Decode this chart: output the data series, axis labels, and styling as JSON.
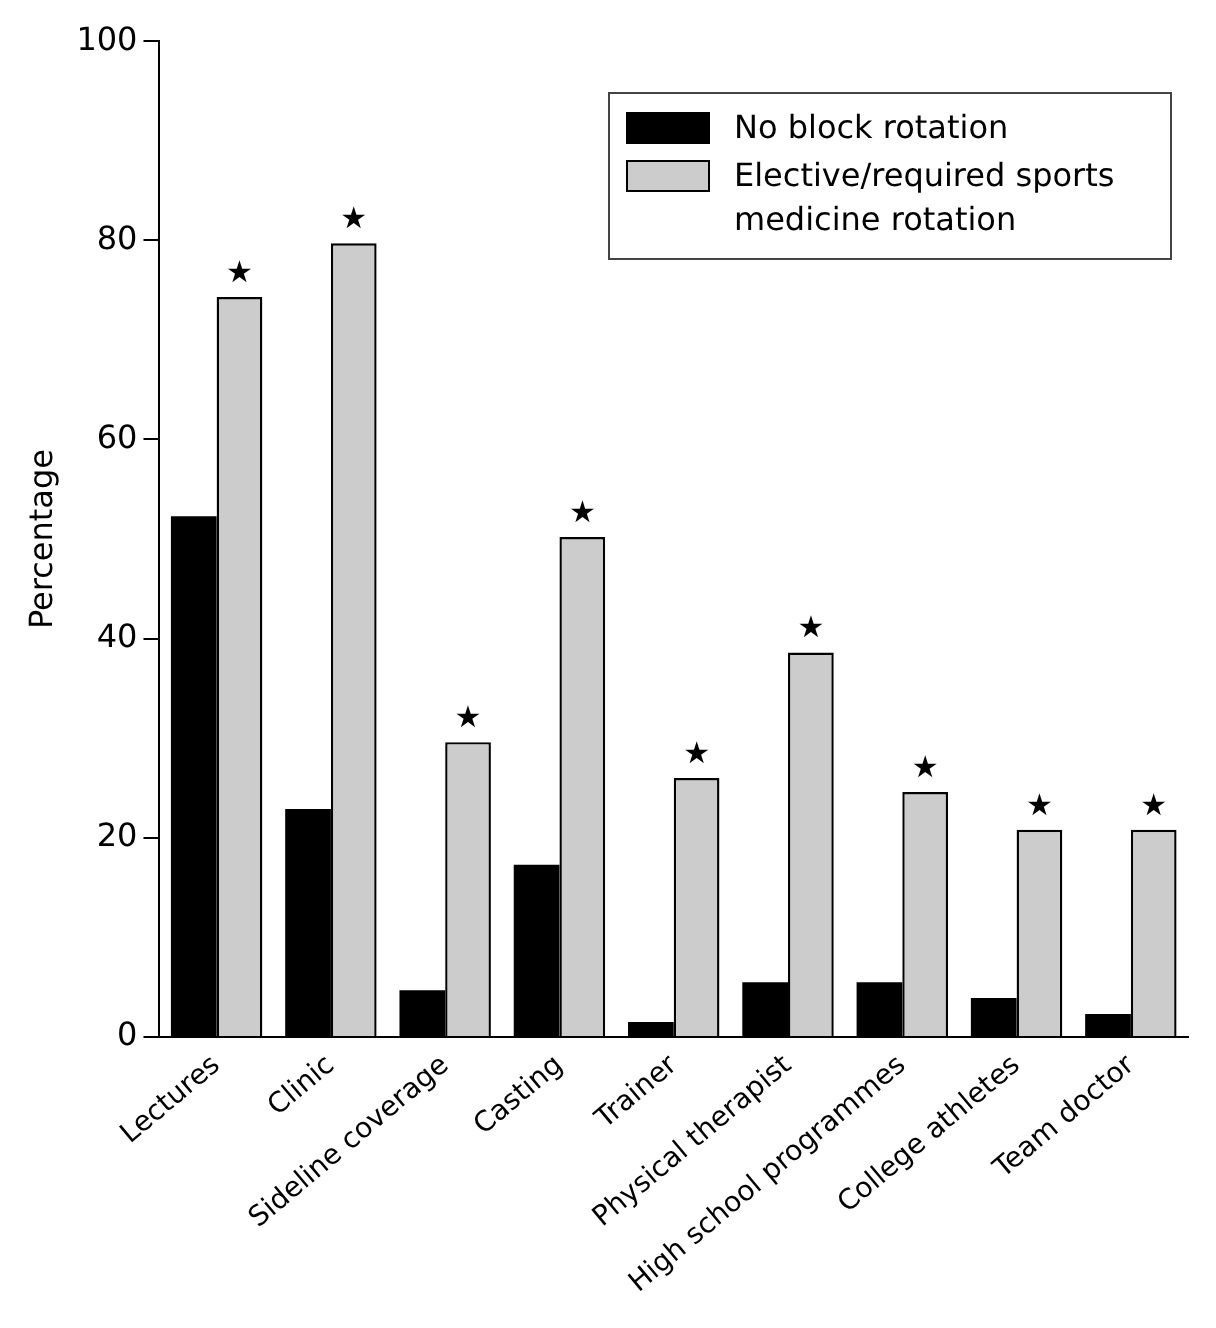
{
  "chart_data": {
    "type": "bar",
    "ylabel": "Percentage",
    "categories": [
      "Lectures",
      "Clinic",
      "Sideline coverage",
      "Casting",
      "Trainer",
      "Physical therapist",
      "High school programmes",
      "College athletes",
      "Team doctor"
    ],
    "series": [
      {
        "name": "No block rotation",
        "color": "#000000",
        "values": [
          52.3,
          22.9,
          4.7,
          17.3,
          1.5,
          5.5,
          5.5,
          3.9,
          2.3
        ]
      },
      {
        "name": "Elective/required sports medicine rotation",
        "color": "#cccccc",
        "values": [
          74.3,
          79.7,
          29.6,
          50.2,
          26.0,
          38.6,
          24.6,
          20.8,
          20.8
        ]
      }
    ],
    "ylim": [
      0,
      100
    ],
    "yticks": [
      0,
      20,
      40,
      60,
      80,
      100
    ],
    "grid": false,
    "legend": "top right",
    "annotations": [
      {
        "text": "★",
        "x": "Lectures",
        "y": 74.3
      },
      {
        "text": "★",
        "x": "Clinic",
        "y": 79.7
      },
      {
        "text": "★",
        "x": "Sideline coverage",
        "y": 29.6
      },
      {
        "text": "★",
        "x": "Casting",
        "y": 50.2
      },
      {
        "text": "★",
        "x": "Trainer",
        "y": 26.0
      },
      {
        "text": "★",
        "x": "Physical therapist",
        "y": 38.6
      },
      {
        "text": "★",
        "x": "High school programmes",
        "y": 24.6
      },
      {
        "text": "★",
        "x": "College athletes",
        "y": 20.8
      },
      {
        "text": "★",
        "x": "Team doctor",
        "y": 20.8
      }
    ]
  }
}
